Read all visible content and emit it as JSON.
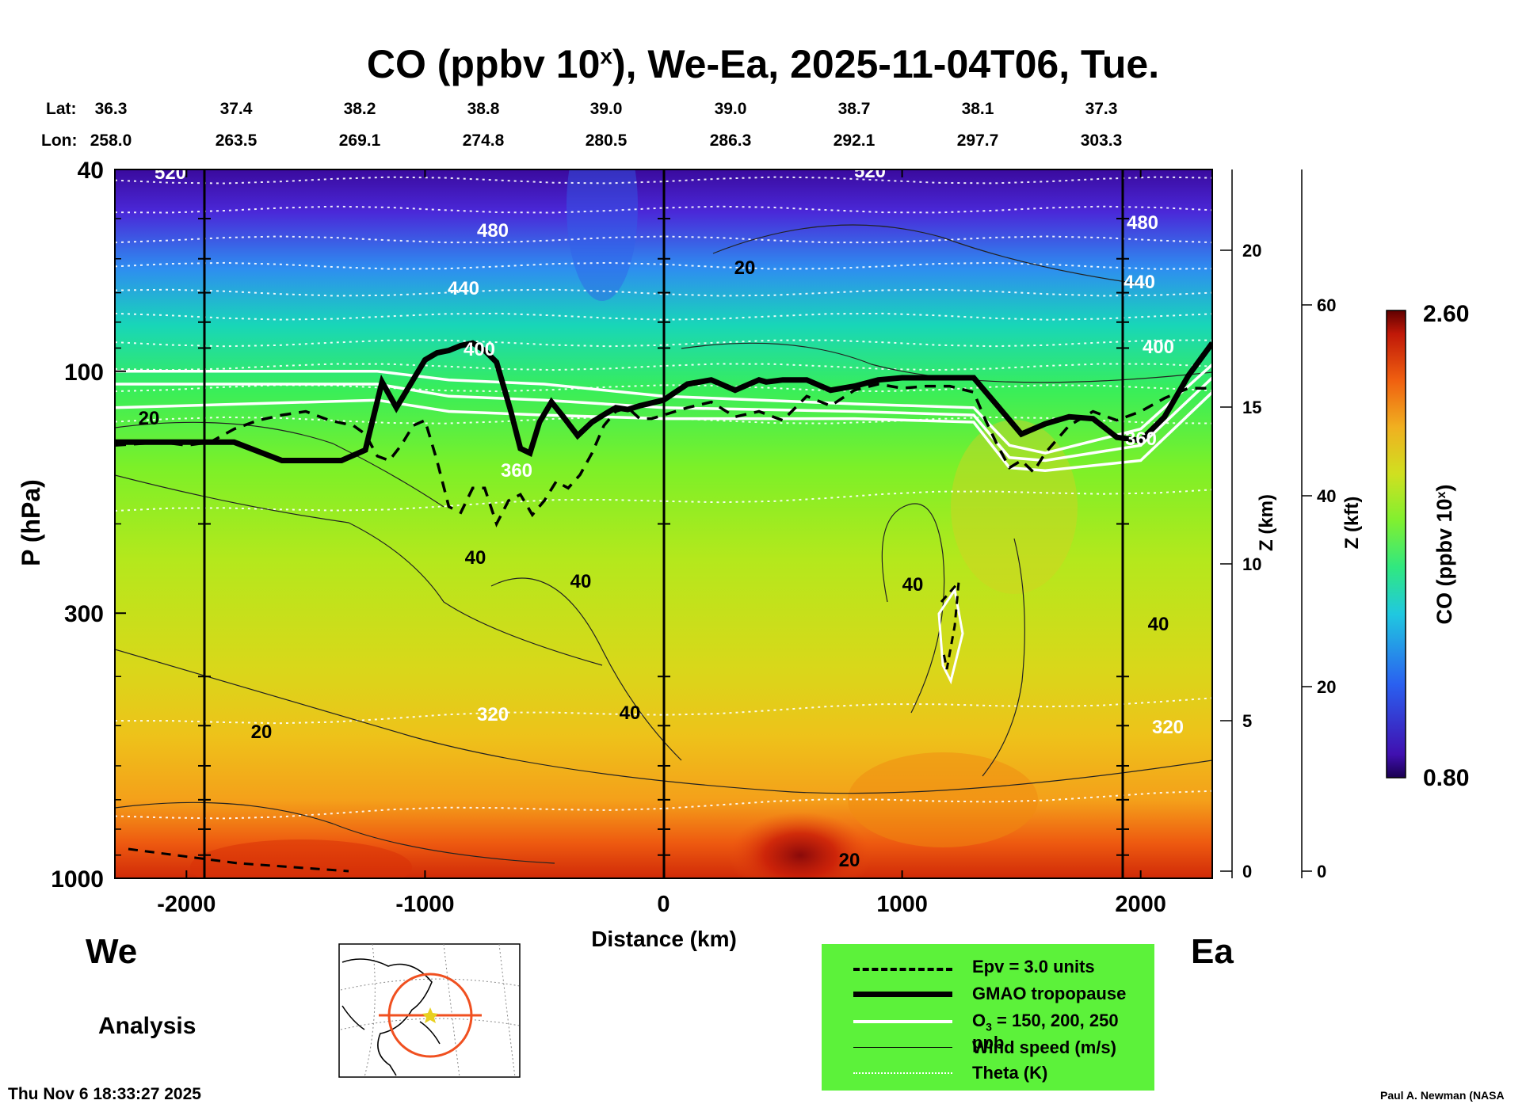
{
  "title": {
    "main": "CO (ppbv 10",
    "exp": "x",
    "rest": "), We-Ea, 2025-11-04T06, Tue."
  },
  "coords": {
    "lat_label": "Lat:",
    "lon_label": "Lon:",
    "lat": [
      "36.3",
      "37.4",
      "38.2",
      "38.8",
      "39.0",
      "39.0",
      "38.7",
      "38.1",
      "37.3"
    ],
    "lon": [
      "258.0",
      "263.5",
      "269.1",
      "274.8",
      "280.5",
      "286.3",
      "292.1",
      "297.7",
      "303.3"
    ]
  },
  "left_label": "We",
  "right_label": "Ea",
  "analysis_label": "Analysis",
  "timestamp": "Thu Nov  6 18:33:27 2025",
  "credit": "Paul A. Newman (NASA",
  "colorbar": {
    "title": "CO (ppbv 10",
    "exp": "x",
    "close": ")",
    "max": "2.60",
    "min": "0.80"
  },
  "legend": [
    {
      "label": "Epv = 3.0 units",
      "style": "dashed-black"
    },
    {
      "label": "GMAO tropopause",
      "style": "thick-black"
    },
    {
      "label": "O",
      "sub": "3",
      "rest": " = 150, 200, 250 ppb",
      "style": "white"
    },
    {
      "label": "Wind speed (m/s)",
      "style": "thin-black"
    },
    {
      "label": "Theta (K)",
      "style": "dotted-white"
    }
  ],
  "chart_data": {
    "type": "heatmap",
    "title": "CO (ppbv 10^x), We-Ea, 2025-11-04T06, Tue.",
    "xlabel": "Distance (km)",
    "ylabel": "P (hPa)",
    "y2label": "Z (km)",
    "y3label": "Z (kft)",
    "xlim": [
      -2300,
      2300
    ],
    "ylim": [
      1000,
      40
    ],
    "yscale": "log",
    "x_ticks": [
      -2000,
      -1000,
      0,
      1000,
      2000
    ],
    "x_tick_labels": [
      "-2000",
      "-1000",
      "0",
      "1000",
      "2000"
    ],
    "y_ticks": [
      40,
      100,
      300,
      1000
    ],
    "y_tick_labels": [
      "40",
      "100",
      "300",
      "1000"
    ],
    "z_km_ticks": [
      "0",
      "5",
      "10",
      "15",
      "20"
    ],
    "z_kft_ticks": [
      "0",
      "20",
      "40",
      "60"
    ],
    "colorbar_range": [
      0.8,
      2.6
    ],
    "theta_labels": [
      "520",
      "480",
      "440",
      "400",
      "360",
      "320"
    ],
    "wind_labels": [
      "20",
      "40"
    ],
    "tropopause": {
      "x": [
        -2300,
        -1800,
        -1600,
        -1350,
        -1250,
        -1180,
        -1120,
        -1000,
        -950,
        -900,
        -850,
        -800,
        -750,
        -700,
        -640,
        -600,
        -560,
        -520,
        -470,
        -420,
        -360,
        -300,
        -240,
        -200,
        -150,
        -100,
        0,
        100,
        200,
        300,
        400,
        430,
        500,
        600,
        700,
        800,
        900,
        1000,
        1100,
        1200,
        1300,
        1400,
        1500,
        1600,
        1700,
        1800,
        1900,
        2000,
        2100,
        2200,
        2300
      ],
      "p": [
        138,
        138,
        150,
        150,
        143,
        105,
        118,
        95,
        92,
        91,
        89,
        88,
        91,
        96,
        120,
        142,
        145,
        126,
        115,
        123,
        134,
        126,
        121,
        118,
        119,
        117,
        114,
        106,
        104,
        109,
        104,
        105,
        104,
        104,
        109,
        107,
        104,
        103,
        103,
        103,
        103,
        117,
        133,
        127,
        123,
        124,
        135,
        137,
        123,
        102,
        88
      ]
    },
    "epv": {
      "x": [
        -2300,
        -2100,
        -2000,
        -1900,
        -1800,
        -1700,
        -1600,
        -1500,
        -1400,
        -1300,
        -1250,
        -1200,
        -1150,
        -1100,
        -1050,
        -1000,
        -950,
        -900,
        -850,
        -800,
        -750,
        -700,
        -650,
        -600,
        -550,
        -500,
        -450,
        -400,
        -350,
        -300,
        -250,
        -200,
        -150,
        -100,
        -50,
        0,
        100,
        200,
        300,
        400,
        500,
        600,
        700,
        800,
        900,
        1000,
        1100,
        1200,
        1300,
        1350,
        1400,
        1450,
        1500,
        1550,
        1600,
        1700,
        1800,
        1900,
        2000,
        2100,
        2200,
        2300
      ],
      "p": [
        140,
        138,
        140,
        138,
        130,
        125,
        122,
        120,
        125,
        128,
        133,
        147,
        150,
        140,
        128,
        125,
        150,
        185,
        190,
        170,
        170,
        200,
        180,
        175,
        192,
        180,
        165,
        170,
        160,
        145,
        128,
        120,
        118,
        124,
        124,
        122,
        118,
        115,
        123,
        120,
        125,
        112,
        117,
        109,
        106,
        108,
        107,
        107,
        110,
        125,
        140,
        155,
        150,
        158,
        145,
        128,
        120,
        125,
        120,
        113,
        108,
        108
      ]
    }
  }
}
